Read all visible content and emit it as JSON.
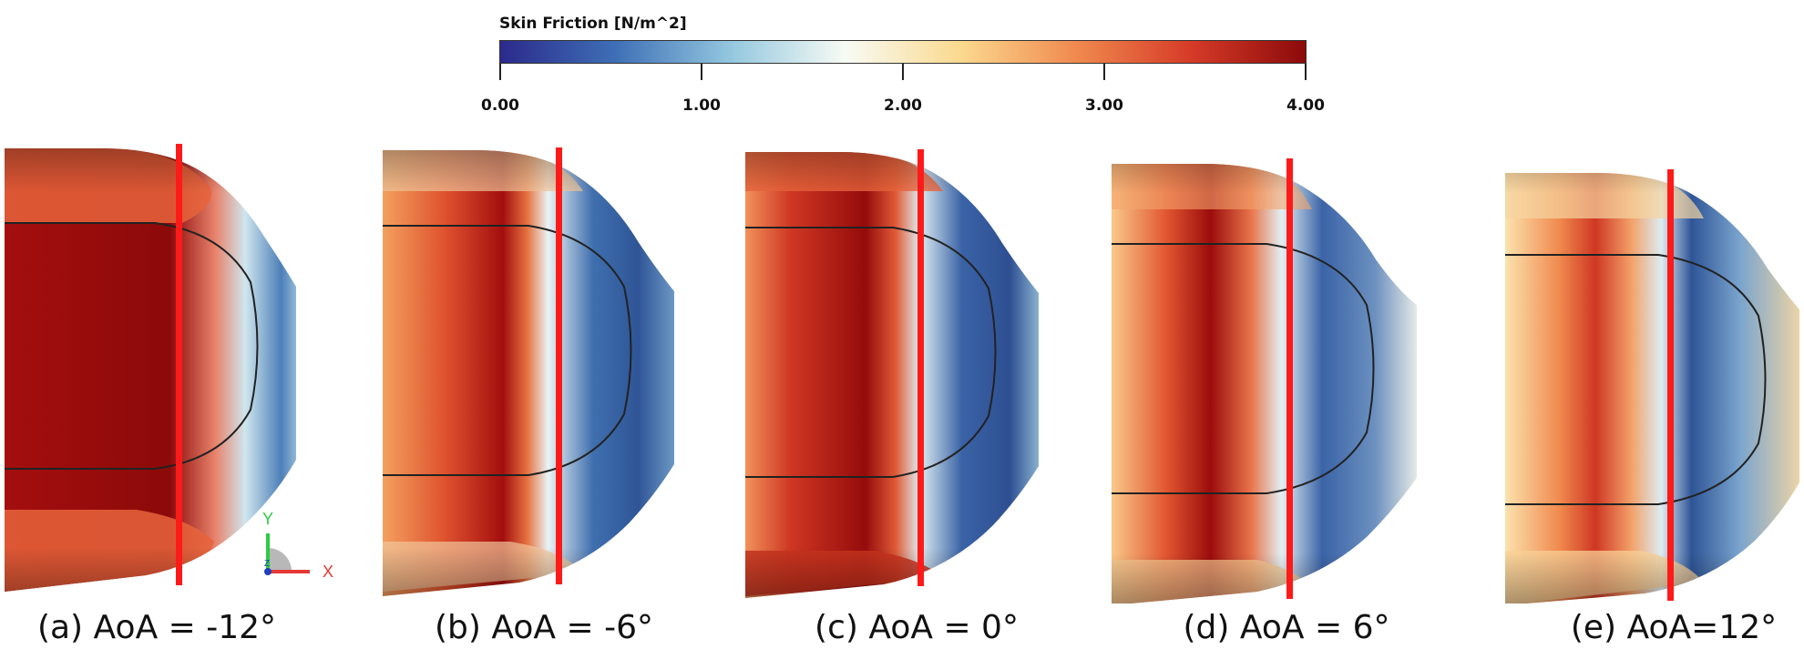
{
  "colorbar": {
    "title": "Skin Friction [N/m^2]",
    "ticks": [
      "0.00",
      "1.00",
      "2.00",
      "3.00",
      "4.00"
    ],
    "min": 0,
    "max": 4,
    "colors": [
      "#2b2a8c",
      "#3e6fb6",
      "#93c7df",
      "#f7fbf4",
      "#fbd98f",
      "#f08a4f",
      "#d63b28",
      "#8c0a0a"
    ]
  },
  "axes_indicator": {
    "y_label": "Y",
    "x_label": "X",
    "z_label": "Z"
  },
  "panels": [
    {
      "caption": "(a) AoA = -12°"
    },
    {
      "caption": "(b) AoA = -6°"
    },
    {
      "caption": "(c) AoA = 0°"
    },
    {
      "caption": "(d) AoA = 6°"
    },
    {
      "caption": "(e) AoA=12°"
    }
  ]
}
